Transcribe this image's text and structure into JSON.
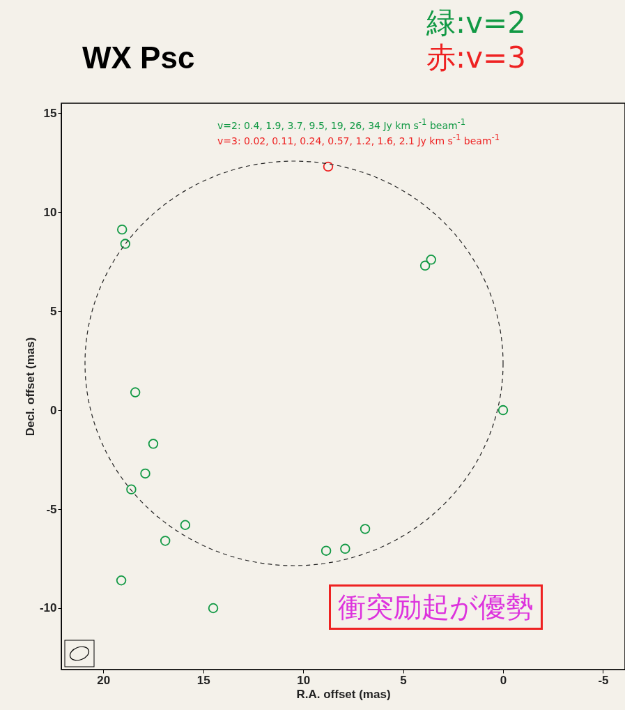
{
  "chart_data": {
    "type": "scatter",
    "title": "WX Psc",
    "xlabel": "R.A. offset (mas)",
    "ylabel": "Decl. offset (mas)",
    "xlim": [
      22.1,
      -6.1
    ],
    "ylim": [
      -13.1,
      15.5
    ],
    "xticks": [
      20,
      15,
      10,
      5,
      0,
      -5
    ],
    "yticks": [
      -10,
      -5,
      0,
      5,
      10,
      15
    ],
    "grid": false,
    "marker": "circle",
    "legend": "top right",
    "series": [
      {
        "name": "緑:v=2",
        "color": "#119944",
        "x": [
          19.06,
          18.9,
          3.9,
          3.6,
          18.4,
          0,
          17.5,
          17.9,
          18.6,
          15.9,
          16.9,
          6.9,
          8.85,
          7.9,
          19.1,
          14.5
        ],
        "values": [
          9.12,
          8.4,
          7.3,
          7.6,
          0.9,
          0,
          -1.7,
          -3.2,
          -4.0,
          -5.8,
          -6.6,
          -6.0,
          -7.1,
          -7.0,
          -8.6,
          -10.0
        ]
      },
      {
        "name": "赤:v=3",
        "color": "#ee2222",
        "x": [
          8.75
        ],
        "values": [
          12.3
        ]
      }
    ],
    "annotations": [
      "v=2:  0.4, 1.9, 3.7, 9.5, 19, 26, 34 Jy km s$^{-1}$ beam$^{-1}$",
      "v=3:  0.02, 0.11, 0.24, 0.57, 1.2, 1.6, 2.1 Jy km s$^{-1}$ beam$^{-1}$",
      "衝突励起が優勢"
    ]
  }
}
